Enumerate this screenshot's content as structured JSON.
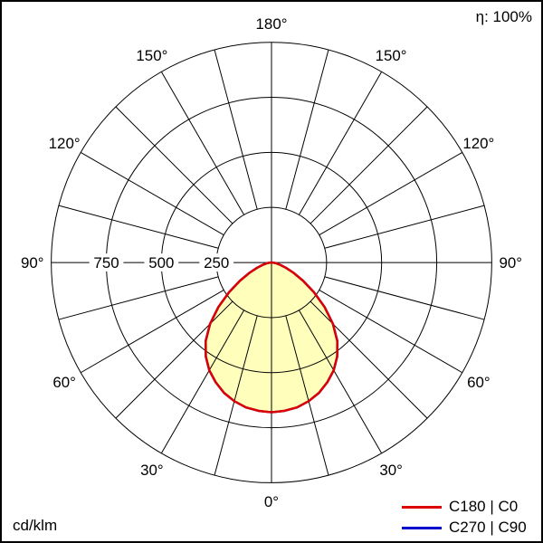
{
  "header": {
    "efficiency_label": "η: 100%"
  },
  "footer": {
    "unit_label": "cd/klm"
  },
  "legend": [
    {
      "label": "C180 | C0",
      "color": "#dd0000"
    },
    {
      "label": "C270 | C90",
      "color": "#0000cc"
    }
  ],
  "chart_data": {
    "type": "line",
    "coordinate_system": "polar",
    "title": "",
    "units": "cd/klm",
    "radial_ticks": [
      250,
      500,
      750
    ],
    "radial_max": 1000,
    "radial_range": [
      0,
      1000
    ],
    "spoke_step_deg": 15,
    "angle_labels_deg": [
      0,
      30,
      60,
      90,
      120,
      150,
      180
    ],
    "angle_label_suffix": "°",
    "fill_color": "#ffffbb",
    "grid_color": "#000000",
    "legend_position": "bottom-right",
    "series": [
      {
        "name": "C180 | C0",
        "color": "#dd0000",
        "symmetric": true,
        "angles_deg": [
          0,
          5,
          10,
          15,
          20,
          25,
          30,
          35,
          40,
          45,
          50,
          55,
          60,
          65,
          70,
          75,
          80,
          85,
          90
        ],
        "values": [
          680,
          676,
          668,
          652,
          630,
          600,
          565,
          520,
          465,
          395,
          315,
          235,
          165,
          110,
          70,
          42,
          22,
          9,
          0
        ]
      },
      {
        "name": "C270 | C90",
        "color": "#0000cc",
        "symmetric": true,
        "angles_deg": [
          0,
          5,
          10,
          15,
          20,
          25,
          30,
          35,
          40,
          45,
          50,
          55,
          60,
          65,
          70,
          75,
          80,
          85,
          90
        ],
        "values": [
          680,
          676,
          668,
          652,
          630,
          600,
          565,
          520,
          465,
          395,
          315,
          235,
          165,
          110,
          70,
          42,
          22,
          9,
          0
        ]
      }
    ]
  }
}
